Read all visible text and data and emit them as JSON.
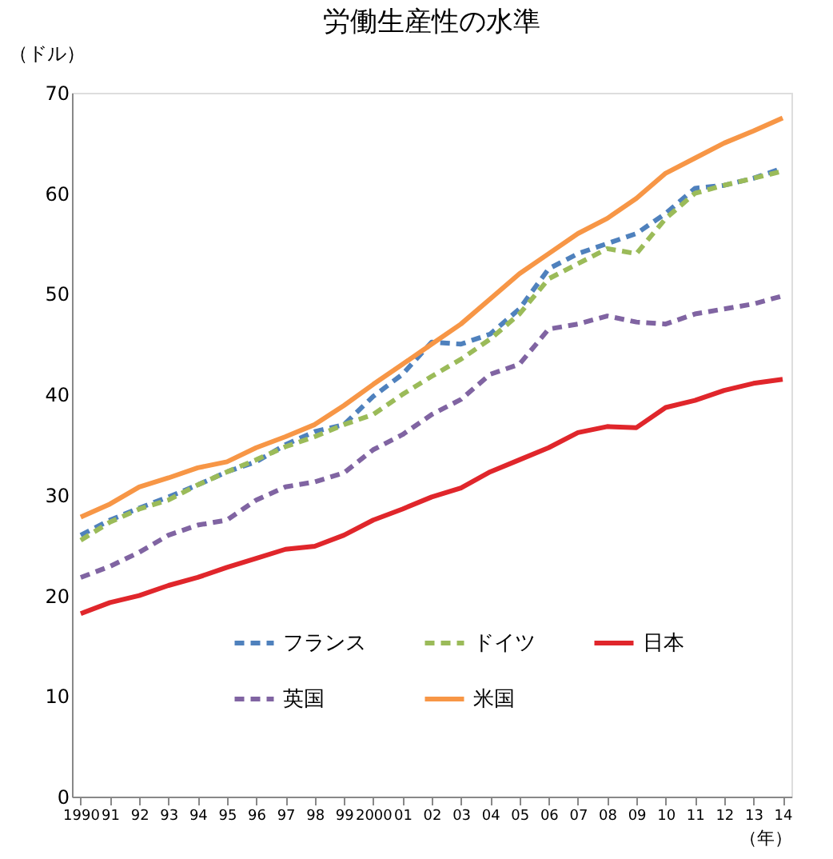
{
  "chart_data": {
    "type": "line",
    "title": "労働生産性の水準",
    "ylabel": "（ドル）",
    "xlabel": "（年）",
    "categories": [
      "1990",
      "91",
      "92",
      "93",
      "94",
      "95",
      "96",
      "97",
      "98",
      "99",
      "2000",
      "01",
      "02",
      "03",
      "04",
      "05",
      "06",
      "07",
      "08",
      "09",
      "10",
      "11",
      "12",
      "13",
      "14"
    ],
    "series": [
      {
        "name": "フランス",
        "color": "#4f81bd",
        "line_style": "dashed",
        "values": [
          26.0,
          27.5,
          28.7,
          29.8,
          31.0,
          32.3,
          33.3,
          35.0,
          36.3,
          37.0,
          39.8,
          42.0,
          45.2,
          45.0,
          46.0,
          48.5,
          52.5,
          54.0,
          55.0,
          56.0,
          58.0,
          60.5,
          60.8,
          61.5,
          62.5
        ]
      },
      {
        "name": "ドイツ",
        "color": "#9bbb59",
        "line_style": "dashed",
        "values": [
          25.5,
          27.3,
          28.6,
          29.5,
          31.0,
          32.3,
          33.5,
          34.8,
          35.8,
          37.0,
          38.0,
          40.0,
          41.8,
          43.5,
          45.5,
          48.0,
          51.5,
          53.0,
          54.5,
          54.0,
          57.5,
          60.0,
          60.8,
          61.5,
          62.2
        ]
      },
      {
        "name": "日本",
        "color": "#e0262b",
        "line_style": "solid",
        "values": [
          18.2,
          19.3,
          20.0,
          21.0,
          21.8,
          22.8,
          23.7,
          24.6,
          24.9,
          26.0,
          27.5,
          28.6,
          29.8,
          30.7,
          32.3,
          33.5,
          34.7,
          36.2,
          36.8,
          36.7,
          38.7,
          39.4,
          40.4,
          41.1,
          41.5
        ]
      },
      {
        "name": "英国",
        "color": "#8064a2",
        "line_style": "dashed",
        "values": [
          21.8,
          22.9,
          24.3,
          26.0,
          27.0,
          27.5,
          29.5,
          30.8,
          31.3,
          32.2,
          34.5,
          36.0,
          38.0,
          39.5,
          42.0,
          43.0,
          46.5,
          47.0,
          47.8,
          47.2,
          47.0,
          48.0,
          48.5,
          49.0,
          49.8
        ]
      },
      {
        "name": "米国",
        "color": "#f79646",
        "line_style": "solid",
        "values": [
          27.8,
          29.1,
          30.8,
          31.7,
          32.7,
          33.3,
          34.7,
          35.8,
          37.0,
          38.9,
          41.0,
          43.0,
          45.0,
          47.0,
          49.5,
          52.0,
          54.0,
          56.0,
          57.5,
          59.5,
          62.0,
          63.5,
          65.0,
          66.2,
          67.5
        ]
      }
    ],
    "ylim": [
      0,
      70
    ],
    "yticks": [
      0,
      10,
      20,
      30,
      40,
      50,
      60,
      70
    ],
    "grid": false,
    "legend": "bottom",
    "marker": "none"
  }
}
